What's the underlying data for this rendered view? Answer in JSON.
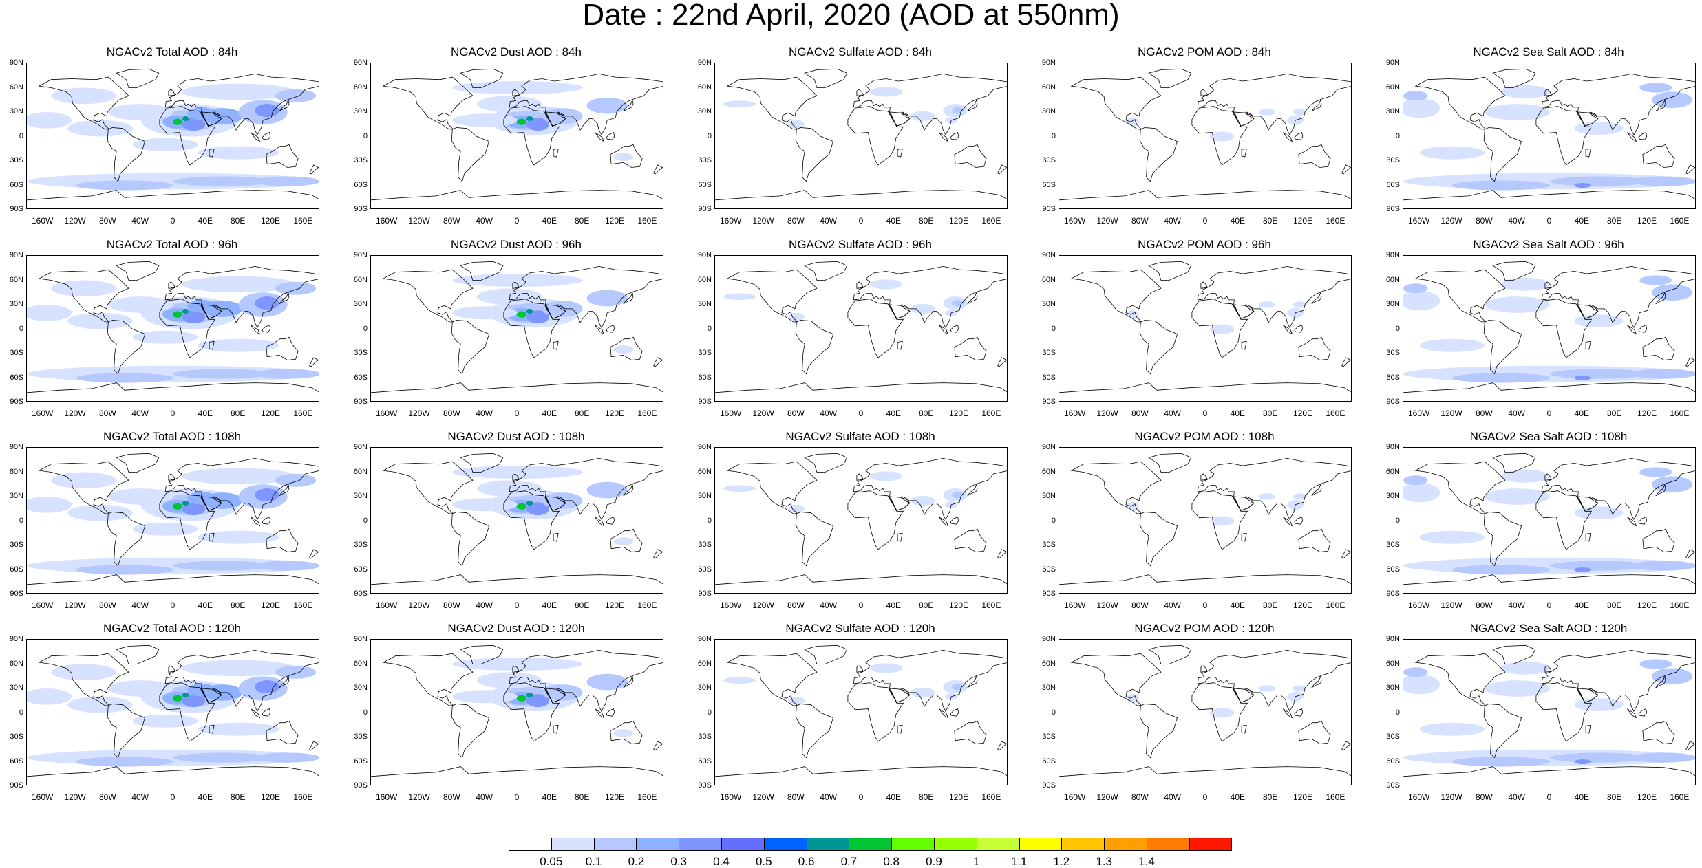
{
  "title": "Date : 22nd April, 2020 (AOD at 550nm)",
  "columns": [
    {
      "key": "total",
      "label": "Total AOD"
    },
    {
      "key": "dust",
      "label": "Dust AOD"
    },
    {
      "key": "sulfate",
      "label": "Sulfate AOD"
    },
    {
      "key": "pom",
      "label": "POM AOD"
    },
    {
      "key": "seasalt",
      "label": "Sea Salt AOD"
    }
  ],
  "panels": [
    [
      "NGACv2 Total AOD : 84h",
      "NGACv2 Dust AOD : 84h",
      "NGACv2 Sulfate AOD : 84h",
      "NGACv2 POM AOD : 84h",
      "NGACv2 Sea Salt AOD : 84h"
    ],
    [
      "NGACv2 Total AOD : 96h",
      "NGACv2 Dust AOD : 96h",
      "NGACv2 Sulfate AOD : 96h",
      "NGACv2 POM AOD : 96h",
      "NGACv2 Sea Salt AOD : 96h"
    ],
    [
      "NGACv2 Total AOD : 108h",
      "NGACv2 Dust AOD : 108h",
      "NGACv2 Sulfate AOD : 108h",
      "NGACv2 POM AOD : 108h",
      "NGACv2 Sea Salt AOD : 108h"
    ],
    [
      "NGACv2 Total AOD : 120h",
      "NGACv2 Dust AOD : 120h",
      "NGACv2 Sulfate AOD : 120h",
      "NGACv2 POM AOD : 120h",
      "NGACv2 Sea Salt  AOD : 120h"
    ]
  ],
  "lat_labels": [
    "90N",
    "60N",
    "30N",
    "0",
    "30S",
    "60S",
    "90S"
  ],
  "lon_labels": [
    "160W",
    "120W",
    "80W",
    "40W",
    "0",
    "40E",
    "80E",
    "120E",
    "160E"
  ],
  "colorbar": {
    "levels": [
      "0.05",
      "0.1",
      "0.2",
      "0.3",
      "0.4",
      "0.5",
      "0.6",
      "0.7",
      "0.8",
      "0.9",
      "1",
      "1.1",
      "1.2",
      "1.3",
      "1.4"
    ],
    "colors": [
      "#ffffff",
      "#d6e2ff",
      "#b5c9ff",
      "#8eb2ff",
      "#7f96ff",
      "#6370ff",
      "#0063ff",
      "#009696",
      "#00c633",
      "#63ff00",
      "#96ff00",
      "#c6ff33",
      "#ffff00",
      "#ffc600",
      "#ffa000",
      "#ff7c00",
      "#ff1900"
    ]
  }
}
